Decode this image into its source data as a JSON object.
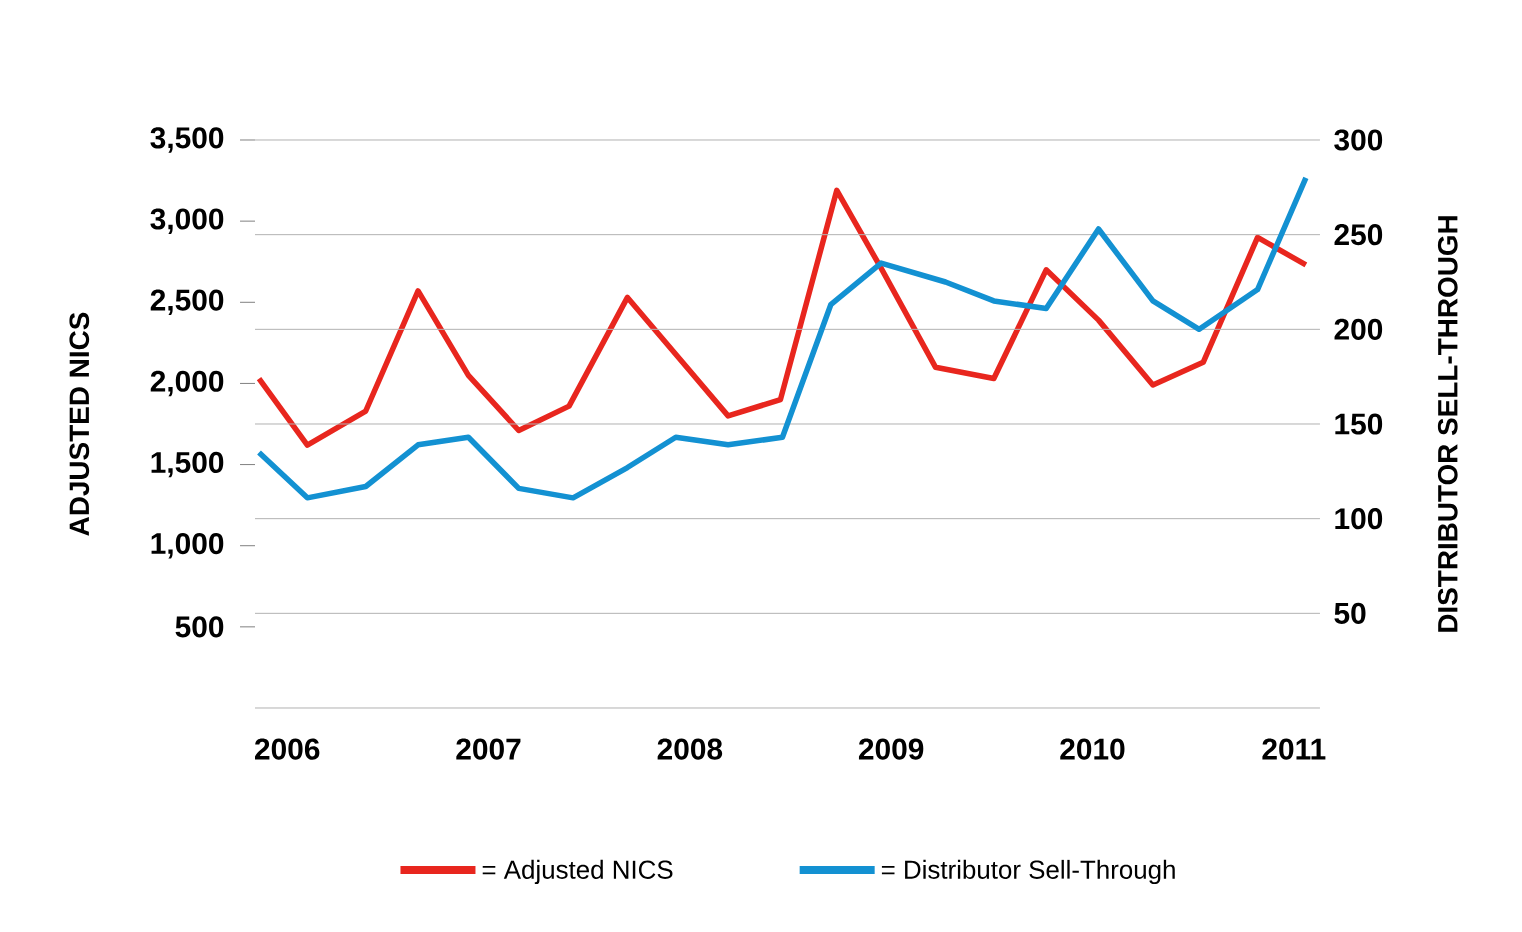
{
  "chart_data": {
    "type": "line",
    "xlabel": null,
    "ylabel": "ADJUSTED NICS",
    "y2label": "DISTRIBUTOR SELL-THROUGH",
    "xlim": [
      2005.84,
      2011.13
    ],
    "xticks": [
      2006,
      2007,
      2008,
      2009,
      2010,
      2011
    ],
    "ylim": [
      0,
      3500
    ],
    "yticks": [
      {
        "value": 500,
        "label": "500"
      },
      {
        "value": 1000,
        "label": "1,000"
      },
      {
        "value": 1500,
        "label": "1,500"
      },
      {
        "value": 2000,
        "label": "2,000"
      },
      {
        "value": 2500,
        "label": "2,500"
      },
      {
        "value": 3000,
        "label": "3,000"
      },
      {
        "value": 3500,
        "label": "3,500"
      }
    ],
    "y2lim": [
      0,
      300
    ],
    "y2ticks": [
      {
        "value": 0,
        "label": null
      },
      50,
      100,
      150,
      200,
      250,
      300
    ],
    "grid": true,
    "legend": "bottom",
    "marker": "none",
    "line_style": "solid",
    "series": [
      {
        "name": "= Adjusted NICS",
        "color": "#e8261e",
        "x": [
          2005.86,
          2006.1,
          2006.39,
          2006.65,
          2006.9,
          2007.15,
          2007.4,
          2007.69,
          2007.95,
          2008.19,
          2008.45,
          2008.73,
          2008.95,
          2009.22,
          2009.51,
          2009.77,
          2010.03,
          2010.3,
          2010.55,
          2010.82,
          2011.06
        ],
        "values": [
          2030,
          1620,
          1830,
          2570,
          2050,
          1710,
          1860,
          2530,
          2150,
          1800,
          1900,
          3190,
          2710,
          2100,
          2030,
          2700,
          2390,
          1990,
          2130,
          2900,
          2730
        ]
      },
      {
        "name": "= Distributor Sell-Through",
        "color": "#1391d2",
        "axis": "y2",
        "x": [
          2005.86,
          2006.1,
          2006.39,
          2006.65,
          2006.9,
          2007.15,
          2007.42,
          2007.69,
          2007.93,
          2008.19,
          2008.46,
          2008.7,
          2008.95,
          2009.27,
          2009.51,
          2009.77,
          2010.03,
          2010.3,
          2010.53,
          2010.82,
          2011.06
        ],
        "values": [
          135,
          111,
          117,
          139,
          143,
          116,
          111,
          127,
          143,
          139,
          143,
          213,
          235,
          225,
          215,
          211,
          253,
          215,
          200,
          221,
          280
        ]
      }
    ]
  }
}
